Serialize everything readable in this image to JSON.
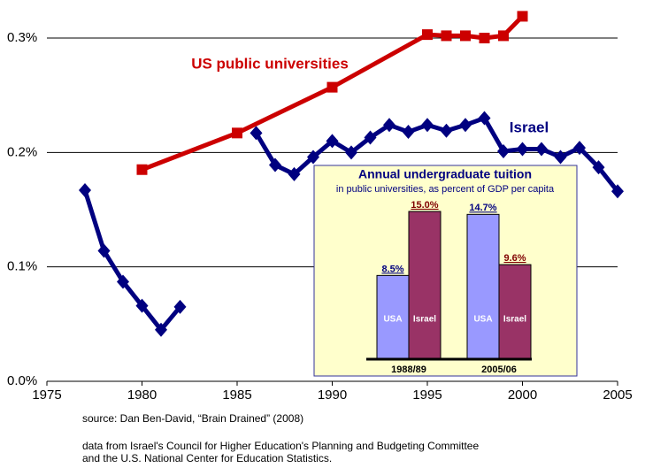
{
  "chart_data": [
    {
      "type": "line",
      "xlim": [
        1975,
        2005
      ],
      "xticks": [
        1975,
        1980,
        1985,
        1990,
        1995,
        2000,
        2005
      ],
      "ylim": [
        0,
        0.3
      ],
      "yticks": [
        {
          "value": 0,
          "label": "0.0%"
        },
        {
          "value": 0.1,
          "label": "0.1%"
        },
        {
          "value": 0.2,
          "label": "0.2%"
        },
        {
          "value": 0.3,
          "label": "0.3%"
        }
      ],
      "grid": true,
      "series": [
        {
          "name": "US public universities",
          "color": "#cc0000",
          "marker": "square",
          "x": [
            1980,
            1985,
            1990,
            1995,
            1996,
            1997,
            1998,
            1999,
            2000
          ],
          "values": [
            0.185,
            0.217,
            0.257,
            0.303,
            0.302,
            0.302,
            0.3,
            0.302,
            0.319
          ]
        },
        {
          "name": "Israel",
          "color": "#000080",
          "marker": "diamond",
          "x": [
            1977,
            1978,
            1979,
            1980,
            1981,
            1982,
            1983,
            1984,
            1985,
            1986,
            1987,
            1988,
            1989,
            1990,
            1991,
            1992,
            1993,
            1994,
            1995,
            1996,
            1997,
            1998,
            1999,
            2000,
            2001,
            2002,
            2003,
            2004,
            2005
          ],
          "values": [
            0.167,
            0.114,
            0.087,
            0.066,
            0.045,
            0.065,
            null,
            null,
            null,
            0.217,
            0.189,
            0.181,
            0.196,
            0.21,
            0.2,
            0.213,
            0.224,
            0.218,
            0.224,
            0.219,
            0.224,
            0.23,
            0.201,
            0.203,
            0.203,
            0.196,
            0.204,
            0.187,
            0.166
          ]
        }
      ]
    },
    {
      "type": "bar",
      "title": "Annual undergraduate tuition",
      "subtitle": "in public universities, as percent of GDP per capita",
      "categories": [
        "1988/89",
        "2005/06"
      ],
      "series": [
        {
          "name": "USA",
          "color": "#9999ff",
          "label_color": "#000080",
          "values": [
            8.5,
            14.7
          ],
          "value_labels": [
            "8.5%",
            "14.7%"
          ]
        },
        {
          "name": "Israel",
          "color": "#993366",
          "label_color": "#800000",
          "values": [
            15.0,
            9.6
          ],
          "value_labels": [
            "15.0%",
            "9.6%"
          ]
        }
      ]
    }
  ],
  "source": "source: Dan Ben-David, “Brain Drained” (2008)",
  "note": [
    "data from Israel's Council for Higher Education's Planning and Budgeting Committee",
    "and the U.S. National Center for Education Statistics."
  ]
}
